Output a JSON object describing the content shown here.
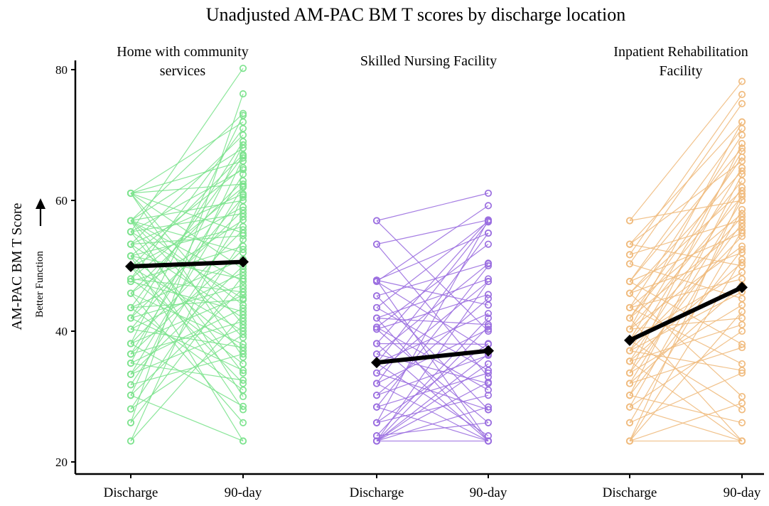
{
  "chart_data": {
    "type": "line",
    "title": "Unadjusted AM-PAC BM T scores by discharge location",
    "ylabel": "AM-PAC BM T Score",
    "ylabel_annotation": "Better Function",
    "ylim": [
      20,
      80
    ],
    "yticks": [
      20,
      40,
      60,
      80
    ],
    "grid": false,
    "x_tick_labels": [
      "Discharge",
      "90-day"
    ],
    "mean_marker_color": "#000000",
    "panels": [
      {
        "name": "Home with community services",
        "title_lines": [
          "Home with community",
          "services"
        ],
        "color": "#7ee38f",
        "mean": {
          "discharge": 49.9,
          "day90": 50.6
        },
        "pairs": [
          [
            61.1,
            66.0
          ],
          [
            61.1,
            49.5
          ],
          [
            61.1,
            41.0
          ],
          [
            61.1,
            72.0
          ],
          [
            61.1,
            55.0
          ],
          [
            61.1,
            36.0
          ],
          [
            61.1,
            62.5
          ],
          [
            56.9,
            73.3
          ],
          [
            56.9,
            47.6
          ],
          [
            56.9,
            39.0
          ],
          [
            56.9,
            60.0
          ],
          [
            56.9,
            30.0
          ],
          [
            56.9,
            68.0
          ],
          [
            56.9,
            52.0
          ],
          [
            56.9,
            44.0
          ],
          [
            55.2,
            64.7
          ],
          [
            55.2,
            45.0
          ],
          [
            55.2,
            33.6
          ],
          [
            55.2,
            58.0
          ],
          [
            55.2,
            80.2
          ],
          [
            53.3,
            54.6
          ],
          [
            53.3,
            70.0
          ],
          [
            53.3,
            42.0
          ],
          [
            53.3,
            28.0
          ],
          [
            53.3,
            61.0
          ],
          [
            51.5,
            65.0
          ],
          [
            51.5,
            48.0
          ],
          [
            51.5,
            37.0
          ],
          [
            51.5,
            56.0
          ],
          [
            51.5,
            23.2
          ],
          [
            49.8,
            67.0
          ],
          [
            49.8,
            50.5
          ],
          [
            49.8,
            40.0
          ],
          [
            49.8,
            59.0
          ],
          [
            49.8,
            32.0
          ],
          [
            48.0,
            71.0
          ],
          [
            48.0,
            46.0
          ],
          [
            48.0,
            35.0
          ],
          [
            48.0,
            62.0
          ],
          [
            47.6,
            53.0
          ],
          [
            47.6,
            43.0
          ],
          [
            45.8,
            63.0
          ],
          [
            45.8,
            38.0
          ],
          [
            45.8,
            57.0
          ],
          [
            45.8,
            26.0
          ],
          [
            43.6,
            66.8
          ],
          [
            43.6,
            44.8
          ],
          [
            43.6,
            31.0
          ],
          [
            43.6,
            51.0
          ],
          [
            42.0,
            69.0
          ],
          [
            42.0,
            47.0
          ],
          [
            42.0,
            34.0
          ],
          [
            42.0,
            58.5
          ],
          [
            40.3,
            60.5
          ],
          [
            40.3,
            37.5
          ],
          [
            40.3,
            49.0
          ],
          [
            38.1,
            73.0
          ],
          [
            38.1,
            45.5
          ],
          [
            38.1,
            28.5
          ],
          [
            38.1,
            55.5
          ],
          [
            36.5,
            64.0
          ],
          [
            36.5,
            41.5
          ],
          [
            36.5,
            52.5
          ],
          [
            35.1,
            68.5
          ],
          [
            35.1,
            43.5
          ],
          [
            35.1,
            32.5
          ],
          [
            33.4,
            62.2
          ],
          [
            33.4,
            40.5
          ],
          [
            33.4,
            50.0
          ],
          [
            31.8,
            57.5
          ],
          [
            31.8,
            36.5
          ],
          [
            30.2,
            66.5
          ],
          [
            30.2,
            46.5
          ],
          [
            30.2,
            23.2
          ],
          [
            28.1,
            54.0
          ],
          [
            28.1,
            39.5
          ],
          [
            26.0,
            76.3
          ],
          [
            26.0,
            48.5
          ],
          [
            23.2,
            60.8
          ],
          [
            23.2,
            42.5
          ]
        ]
      },
      {
        "name": "Skilled Nursing Facility",
        "title_lines": [
          "Skilled Nursing Facility"
        ],
        "color": "#9b6fe0",
        "mean": {
          "discharge": 35.2,
          "day90": 37.0
        },
        "pairs": [
          [
            56.9,
            61.1
          ],
          [
            56.9,
            40.0
          ],
          [
            53.3,
            57.0
          ],
          [
            53.3,
            33.0
          ],
          [
            47.8,
            55.0
          ],
          [
            47.8,
            23.2
          ],
          [
            47.8,
            44.0
          ],
          [
            47.6,
            59.2
          ],
          [
            47.6,
            37.0
          ],
          [
            45.4,
            50.4
          ],
          [
            45.4,
            28.0
          ],
          [
            43.6,
            56.8
          ],
          [
            43.6,
            34.0
          ],
          [
            42.0,
            48.0
          ],
          [
            42.0,
            23.2
          ],
          [
            42.0,
            41.0
          ],
          [
            40.6,
            53.3
          ],
          [
            40.6,
            31.0
          ],
          [
            40.3,
            45.6
          ],
          [
            40.3,
            26.0
          ],
          [
            38.1,
            57.0
          ],
          [
            38.1,
            38.0
          ],
          [
            38.1,
            23.2
          ],
          [
            36.5,
            50.3
          ],
          [
            36.5,
            32.0
          ],
          [
            35.1,
            42.7
          ],
          [
            35.1,
            24.0
          ],
          [
            35.1,
            56.7
          ],
          [
            33.6,
            47.6
          ],
          [
            33.6,
            28.0
          ],
          [
            32.0,
            40.3
          ],
          [
            32.0,
            23.2
          ],
          [
            32.0,
            55.0
          ],
          [
            30.2,
            36.3
          ],
          [
            30.2,
            45.0
          ],
          [
            28.4,
            33.6
          ],
          [
            28.4,
            23.2
          ],
          [
            28.4,
            50.0
          ],
          [
            26.0,
            38.1
          ],
          [
            26.0,
            30.2
          ],
          [
            26.0,
            57.0
          ],
          [
            24.0,
            42.0
          ],
          [
            24.0,
            26.0
          ],
          [
            23.2,
            35.0
          ],
          [
            23.2,
            23.2
          ],
          [
            23.2,
            47.6
          ],
          [
            23.2,
            32.2
          ],
          [
            23.2,
            40.7
          ],
          [
            23.2,
            28.4
          ],
          [
            23.2,
            36.5
          ]
        ]
      },
      {
        "name": "Inpatient Rehabilitation Facility",
        "title_lines": [
          "Inpatient Rehabilitation",
          "Facility"
        ],
        "color": "#f0bb7e",
        "mean": {
          "discharge": 38.6,
          "day90": 46.7
        },
        "pairs": [
          [
            56.9,
            78.2
          ],
          [
            56.9,
            60.0
          ],
          [
            53.3,
            72.0
          ],
          [
            53.3,
            50.0
          ],
          [
            53.3,
            66.0
          ],
          [
            51.7,
            76.2
          ],
          [
            51.7,
            57.0
          ],
          [
            50.3,
            74.8
          ],
          [
            50.3,
            45.0
          ],
          [
            47.6,
            68.0
          ],
          [
            47.6,
            55.0
          ],
          [
            47.6,
            38.0
          ],
          [
            47.6,
            71.0
          ],
          [
            45.8,
            64.5
          ],
          [
            45.8,
            52.0
          ],
          [
            45.8,
            30.0
          ],
          [
            45.8,
            61.5
          ],
          [
            43.6,
            70.0
          ],
          [
            43.6,
            48.0
          ],
          [
            43.6,
            58.0
          ],
          [
            43.6,
            35.0
          ],
          [
            42.0,
            66.6
          ],
          [
            42.0,
            56.0
          ],
          [
            42.0,
            23.2
          ],
          [
            42.0,
            63.0
          ],
          [
            40.3,
            72.0
          ],
          [
            40.3,
            53.0
          ],
          [
            40.3,
            42.0
          ],
          [
            40.3,
            60.6
          ],
          [
            38.6,
            67.5
          ],
          [
            38.6,
            49.0
          ],
          [
            38.6,
            28.0
          ],
          [
            38.6,
            57.5
          ],
          [
            37.0,
            65.0
          ],
          [
            37.0,
            46.0
          ],
          [
            37.0,
            34.0
          ],
          [
            37.0,
            54.5
          ],
          [
            35.4,
            62.0
          ],
          [
            35.4,
            41.0
          ],
          [
            35.4,
            23.2
          ],
          [
            35.4,
            50.5
          ],
          [
            33.6,
            68.7
          ],
          [
            33.6,
            44.0
          ],
          [
            33.6,
            56.5
          ],
          [
            32.0,
            60.0
          ],
          [
            32.0,
            37.5
          ],
          [
            32.0,
            47.0
          ],
          [
            30.2,
            64.0
          ],
          [
            30.2,
            26.0
          ],
          [
            30.2,
            52.5
          ],
          [
            28.4,
            58.6
          ],
          [
            28.4,
            40.0
          ],
          [
            28.4,
            23.2
          ],
          [
            26.0,
            55.4
          ],
          [
            26.0,
            33.6
          ],
          [
            23.2,
            61.0
          ],
          [
            23.2,
            43.0
          ],
          [
            23.2,
            29.0
          ],
          [
            23.2,
            51.0
          ],
          [
            23.2,
            23.2
          ]
        ]
      }
    ]
  }
}
